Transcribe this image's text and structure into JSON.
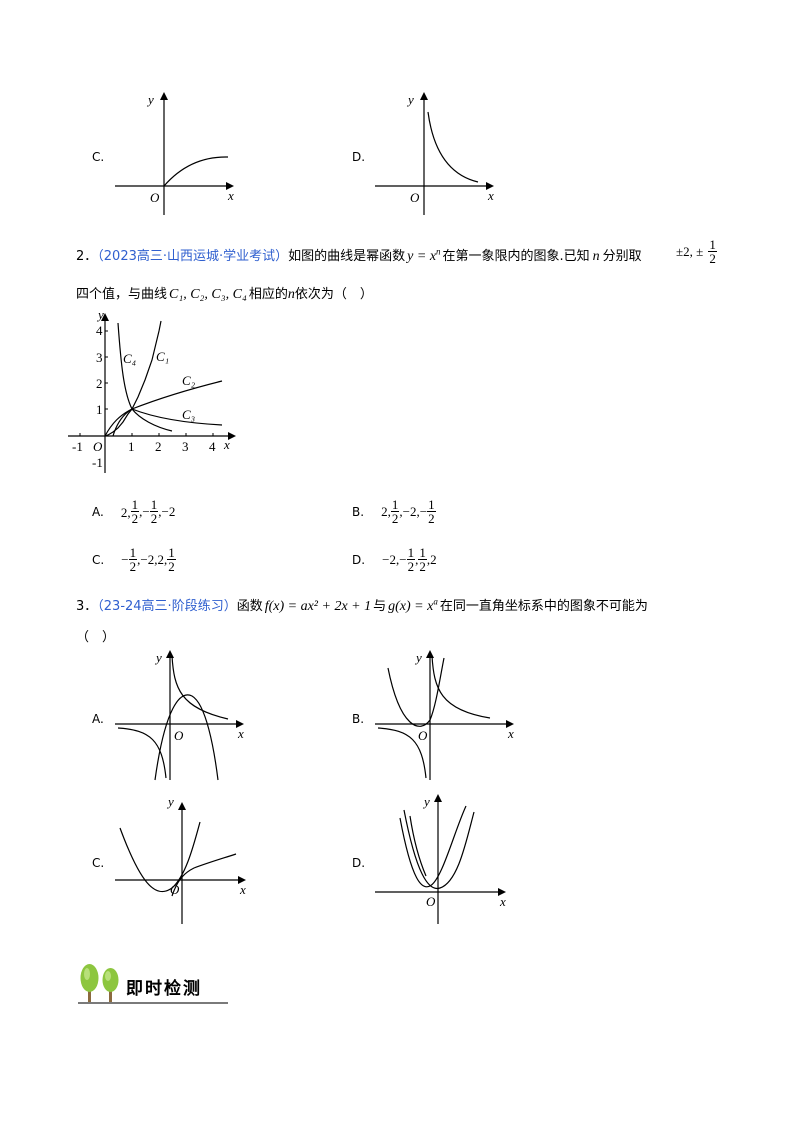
{
  "q1_options": {
    "c": "C.",
    "d": "D."
  },
  "axis": {
    "x": "x",
    "y": "y",
    "o": "O"
  },
  "q2": {
    "num": "2．",
    "source": "（2023高三·山西运城·学业考试）",
    "text_a": "如图的曲线是幂函数",
    "formula": "y = x",
    "formula_exp": "n",
    "text_b": "在第一象限内的图象.已知",
    "var_n": "n",
    "text_c": "分别取",
    "values": "±2, ±",
    "half_num": "1",
    "half_den": "2",
    "line2_a": "四个值，与曲线",
    "curves": "C₁, C₂, C₃, C₄",
    "line2_b": "相应的",
    "line2_c": "依次为（　）",
    "graph": {
      "x_ticks": [
        "-1",
        "1",
        "2",
        "3",
        "4"
      ],
      "y_ticks": [
        "4",
        "3",
        "2",
        "1",
        "-1"
      ],
      "labels": [
        "C₄",
        "C₁",
        "C₂",
        "C₃"
      ]
    },
    "options": {
      "a_label": "A.",
      "a": [
        "2,",
        "1",
        "2",
        ",−",
        "1",
        "2",
        ",−2"
      ],
      "b_label": "B.",
      "b": [
        "2,",
        "1",
        "2",
        ",−2,−",
        "1",
        "2"
      ],
      "c_label": "C.",
      "c": [
        "−",
        "1",
        "2",
        ",−2,2,",
        "1",
        "2"
      ],
      "d_label": "D.",
      "d": [
        "−2,−",
        "1",
        "2",
        ",",
        "1",
        "2",
        ",2"
      ]
    }
  },
  "q3": {
    "num": "3．",
    "source": "（23-24高三·阶段练习）",
    "text_a": "函数",
    "f": "f(x) = ax² + 2x + 1",
    "text_b": "与",
    "g": "g(x) = x",
    "g_exp": "a",
    "text_c": "在同一直角坐标系中的图象不可能为",
    "paren": "（　）",
    "opt_a": "A.",
    "opt_b": "B.",
    "opt_c": "C.",
    "opt_d": "D."
  },
  "section": {
    "title": "即时检测"
  }
}
